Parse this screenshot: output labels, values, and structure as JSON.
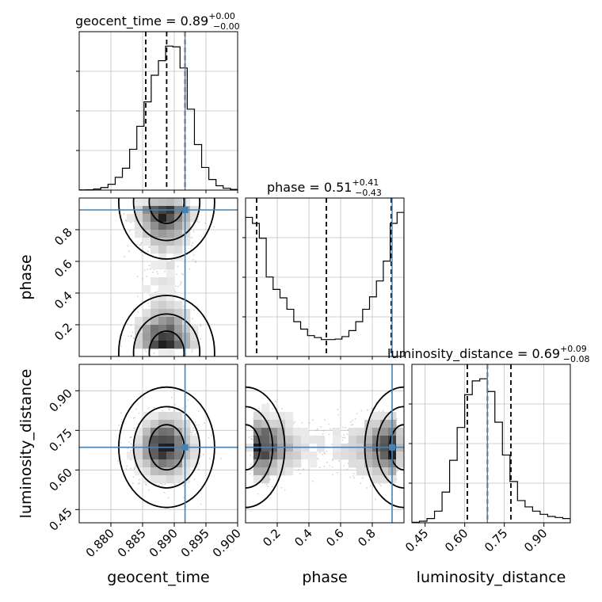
{
  "chart_data": {
    "type": "corner",
    "parameters": [
      "geocent_time",
      "phase",
      "luminosity_distance"
    ],
    "truths": {
      "geocent_time": 0.8917,
      "phase": 0.925,
      "luminosity_distance": 0.686
    },
    "colors": {
      "truth": "#4682b4",
      "hist": "#000000",
      "grid": "#c0c0c0",
      "quantile": "#000000",
      "scatter": "#9a9a9a"
    },
    "grid": true,
    "axes": {
      "geocent_time": {
        "range": [
          0.875,
          0.9
        ],
        "ticks": [
          0.88,
          0.885,
          0.89,
          0.895,
          0.9
        ],
        "tick_labels": [
          "0.880",
          "0.885",
          "0.890",
          "0.895",
          "0.900"
        ],
        "label": "geocent_time"
      },
      "phase": {
        "range": [
          0.0,
          1.0
        ],
        "ticks": [
          0.2,
          0.4,
          0.6,
          0.8
        ],
        "tick_labels": [
          "0.2",
          "0.4",
          "0.6",
          "0.8"
        ],
        "label": "phase"
      },
      "luminosity_distance": {
        "range": [
          0.4,
          1.0
        ],
        "ticks": [
          0.45,
          0.6,
          0.75,
          0.9
        ],
        "tick_labels": [
          "0.45",
          "0.60",
          "0.75",
          "0.90"
        ],
        "label": "luminosity_distance"
      }
    },
    "titles": [
      {
        "param": "geocent_time",
        "text": "geocent_time = 0.89",
        "sup": "+0.00",
        "sub": "−0.00"
      },
      {
        "param": "phase",
        "text": "phase = 0.51",
        "sup": "+0.41",
        "sub": "−0.43"
      },
      {
        "param": "luminosity_distance",
        "text": "luminosity_distance = 0.69",
        "sup": "+0.09",
        "sub": "−0.08"
      }
    ],
    "histograms": {
      "geocent_time": {
        "quantiles": [
          0.8855,
          0.8888,
          0.8917
        ],
        "counts": [
          0.5,
          1,
          3,
          7,
          16,
          35,
          60,
          112,
          175,
          242,
          315,
          355,
          395,
          393,
          335,
          222,
          125,
          62,
          29,
          12,
          5,
          2
        ]
      },
      "phase": {
        "quantiles": [
          0.07,
          0.51,
          0.92
        ],
        "counts": [
          280,
          268,
          238,
          160,
          135,
          118,
          95,
          70,
          55,
          42,
          38,
          34,
          34,
          35,
          40,
          52,
          70,
          95,
          120,
          152,
          192,
          268,
          290
        ]
      },
      "luminosity_distance": {
        "quantiles": [
          0.61,
          0.686,
          0.775
        ],
        "counts": [
          1,
          3,
          8,
          22,
          58,
          118,
          180,
          242,
          268,
          272,
          248,
          190,
          128,
          78,
          42,
          30,
          22,
          16,
          12,
          10,
          8
        ]
      }
    },
    "pairs": [
      {
        "x": "geocent_time",
        "y": "phase"
      },
      {
        "x": "geocent_time",
        "y": "luminosity_distance"
      },
      {
        "x": "phase",
        "y": "luminosity_distance"
      }
    ]
  }
}
